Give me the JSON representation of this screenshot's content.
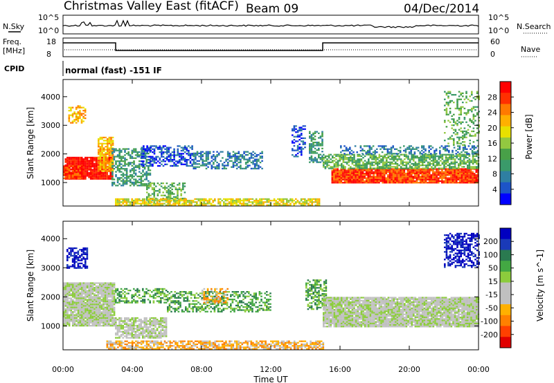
{
  "header": {
    "station": "Christmas Valley East (fitACF)",
    "beam": "Beam 09",
    "date": "04/Dec/2014"
  },
  "strip": {
    "nsky_label": "N.Sky",
    "nsearch_label": "N.Search",
    "nsky_ticks": [
      "10^5",
      "10^0"
    ],
    "nsearch_ticks": [
      "10^5",
      "10^0"
    ],
    "freq_label": [
      "Freq.",
      "[MHz]"
    ],
    "freq_ticks": [
      "18",
      "8"
    ],
    "nave_label": "Nave",
    "nave_ticks": [
      "60",
      "0"
    ],
    "cpid_label": "CPID",
    "cpid_value": "normal (fast) -151 IF"
  },
  "chart_data": [
    {
      "type": "heatmap",
      "name": "Power",
      "xlabel": "Time UT",
      "ylabel": "Slant Range [km]",
      "x_ticks": [
        "00:00",
        "04:00",
        "08:00",
        "12:00",
        "16:00",
        "20:00",
        "00:00"
      ],
      "xlim_hours": [
        0,
        24
      ],
      "y_ticks": [
        1000,
        2000,
        3000,
        4000
      ],
      "ylim": [
        180,
        4600
      ],
      "colorbar": {
        "label": "Power [dB]",
        "ticks": [
          "4",
          "8",
          "12",
          "16",
          "20",
          "24",
          "28"
        ],
        "colors": [
          "#0000ff",
          "#1d54c8",
          "#2f7fa2",
          "#3a9a6a",
          "#48a048",
          "#93c840",
          "#e8e000",
          "#ffb000",
          "#ff7a00",
          "#ff3000",
          "#ff0000"
        ]
      },
      "regions": [
        {
          "t": [
            0.1,
            2.9
          ],
          "r": [
            1150,
            1900
          ],
          "level": 10,
          "density": 0.95
        },
        {
          "t": [
            0.0,
            1.0
          ],
          "r": [
            1150,
            1600
          ],
          "level": 9,
          "density": 0.9
        },
        {
          "t": [
            2.0,
            2.9
          ],
          "r": [
            1400,
            2600
          ],
          "level": 7,
          "density": 0.8
        },
        {
          "t": [
            0.3,
            1.3
          ],
          "r": [
            3100,
            3700
          ],
          "level": 7,
          "density": 0.55
        },
        {
          "t": [
            2.8,
            5.0
          ],
          "r": [
            900,
            2200
          ],
          "level": 3,
          "density": 0.55
        },
        {
          "t": [
            4.8,
            7.0
          ],
          "r": [
            300,
            1000
          ],
          "level": 4,
          "density": 0.5
        },
        {
          "t": [
            4.5,
            7.5
          ],
          "r": [
            1600,
            2300
          ],
          "level": 1,
          "density": 0.55
        },
        {
          "t": [
            7.5,
            11.5
          ],
          "r": [
            1500,
            2100
          ],
          "level": 2,
          "density": 0.5
        },
        {
          "t": [
            3.0,
            14.8
          ],
          "r": [
            220,
            450
          ],
          "level": 6,
          "density": 0.75
        },
        {
          "t": [
            13.2,
            14.0
          ],
          "r": [
            1900,
            3000
          ],
          "level": 1,
          "density": 0.4
        },
        {
          "t": [
            14.2,
            15.0
          ],
          "r": [
            1700,
            2800
          ],
          "level": 3,
          "density": 0.6
        },
        {
          "t": [
            15.5,
            24.0
          ],
          "r": [
            1000,
            1500
          ],
          "level": 9,
          "density": 0.95
        },
        {
          "t": [
            15.0,
            24.0
          ],
          "r": [
            1500,
            2000
          ],
          "level": 4,
          "density": 0.7
        },
        {
          "t": [
            16.0,
            24.0
          ],
          "r": [
            2000,
            2300
          ],
          "level": 2,
          "density": 0.45
        },
        {
          "t": [
            22.0,
            24.0
          ],
          "r": [
            2300,
            4200
          ],
          "level": 4,
          "density": 0.3
        }
      ]
    },
    {
      "type": "heatmap",
      "name": "Velocity",
      "xlabel": "Time UT",
      "ylabel": "Slant Range [km]",
      "x_ticks": [
        "00:00",
        "04:00",
        "08:00",
        "12:00",
        "16:00",
        "20:00",
        "00:00"
      ],
      "xlim_hours": [
        0,
        24
      ],
      "y_ticks": [
        1000,
        2000,
        3000,
        4000
      ],
      "ylim": [
        180,
        4600
      ],
      "colorbar": {
        "label": "Velocity [m s^-1]",
        "ticks": [
          "200",
          "100",
          "50",
          "15",
          "-15",
          "-50",
          "-100",
          "-200"
        ],
        "colors": [
          "#0000c0",
          "#1a3ab8",
          "#2a7a50",
          "#43a843",
          "#8ccc3c",
          "#c0c0c0",
          "#c0c0c0",
          "#ffb000",
          "#ff8000",
          "#ff4000",
          "#e00000"
        ]
      },
      "regions": [
        {
          "t": [
            0.0,
            3.0
          ],
          "r": [
            1000,
            2500
          ],
          "level": 5,
          "density": 0.95
        },
        {
          "t": [
            3.0,
            6.0
          ],
          "r": [
            600,
            1300
          ],
          "level": 5,
          "density": 0.8
        },
        {
          "t": [
            0.2,
            1.4
          ],
          "r": [
            3000,
            3700
          ],
          "level": 0,
          "density": 0.6
        },
        {
          "t": [
            3.0,
            6.0
          ],
          "r": [
            1800,
            2300
          ],
          "level": 3,
          "density": 0.5
        },
        {
          "t": [
            6.0,
            12.0
          ],
          "r": [
            1500,
            2200
          ],
          "level": 3,
          "density": 0.5
        },
        {
          "t": [
            8.0,
            9.5
          ],
          "r": [
            1800,
            2300
          ],
          "level": 7,
          "density": 0.5
        },
        {
          "t": [
            2.5,
            15.0
          ],
          "r": [
            220,
            500
          ],
          "level": 7,
          "density": 0.7
        },
        {
          "t": [
            14.0,
            15.2
          ],
          "r": [
            1600,
            2600
          ],
          "level": 3,
          "density": 0.6
        },
        {
          "t": [
            15.0,
            24.0
          ],
          "r": [
            1000,
            2000
          ],
          "level": 5,
          "density": 0.95
        },
        {
          "t": [
            22.0,
            24.0
          ],
          "r": [
            3000,
            4200
          ],
          "level": 0,
          "density": 0.55
        }
      ]
    }
  ]
}
